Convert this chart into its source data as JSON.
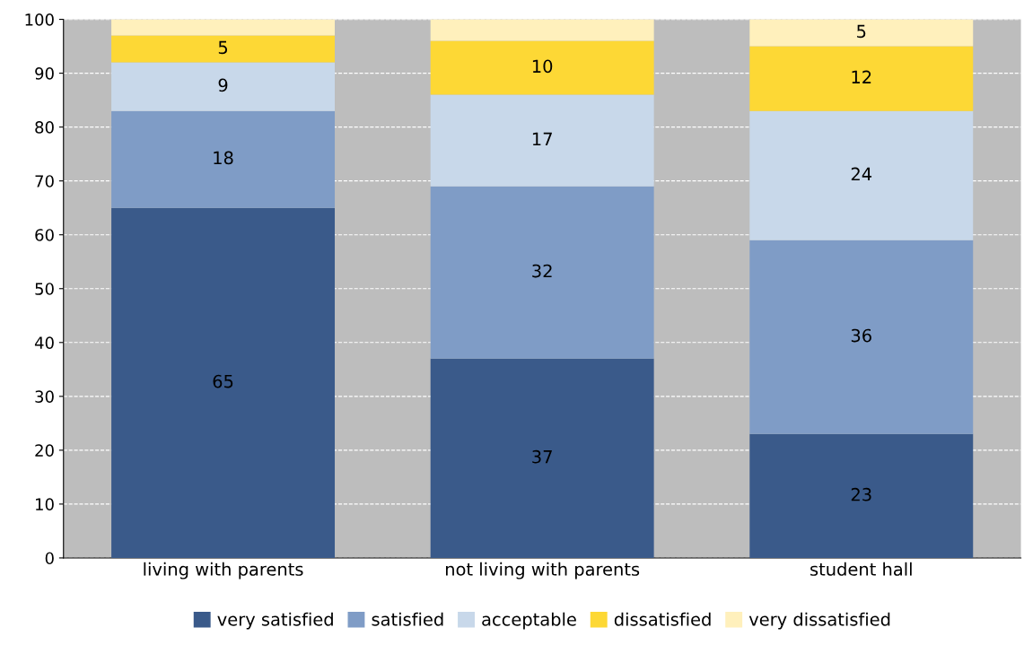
{
  "chart_data": {
    "type": "bar",
    "stacked": true,
    "categories": [
      "living with parents",
      "not living with parents",
      "student hall"
    ],
    "series": [
      {
        "name": "very satisfied",
        "color": "#3a5a8a",
        "values": [
          65,
          37,
          23
        ],
        "value_labels": [
          "65",
          "37",
          "23"
        ]
      },
      {
        "name": "satisfied",
        "color": "#7f9cc6",
        "values": [
          18,
          32,
          36
        ],
        "value_labels": [
          "18",
          "32",
          "36"
        ]
      },
      {
        "name": "acceptable",
        "color": "#c8d8ea",
        "values": [
          9,
          17,
          24
        ],
        "value_labels": [
          "9",
          "17",
          "24"
        ]
      },
      {
        "name": "dissatisfied",
        "color": "#fdd835",
        "values": [
          5,
          10,
          12
        ],
        "value_labels": [
          "5",
          "10",
          "12"
        ]
      },
      {
        "name": "very dissatisfied",
        "color": "#fff0bc",
        "values": [
          3,
          4,
          5
        ],
        "value_labels": [
          null,
          null,
          "5"
        ]
      }
    ],
    "ylim": [
      0,
      100
    ],
    "yticks": [
      0,
      10,
      20,
      30,
      40,
      50,
      60,
      70,
      80,
      90,
      100
    ],
    "grid": "y",
    "legend": "bottom"
  }
}
